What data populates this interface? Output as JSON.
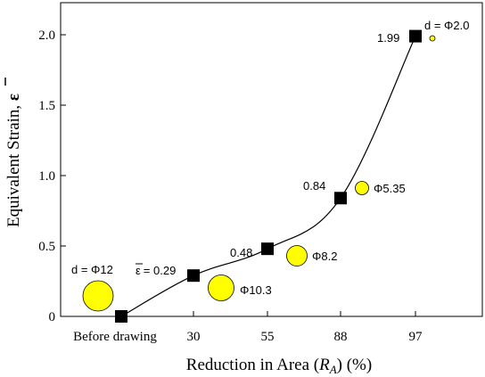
{
  "chart_data": {
    "type": "line",
    "xlabel": "Reduction in Area (",
    "xlabel_var": "R",
    "xlabel_sub": "A",
    "xlabel_tail": ") (%)",
    "ylabel": "Equivalent Strain, ",
    "ylabel_symbol": "ε",
    "x_categories": [
      "Before drawing",
      "30",
      "55",
      "88",
      "97"
    ],
    "y_ticks": [
      "0",
      "0.5",
      "1.0",
      "1.5",
      "2.0"
    ],
    "ylim": [
      0,
      2.2
    ],
    "grid": false,
    "points": [
      {
        "category": "Before drawing",
        "strain": 0.0
      },
      {
        "category": "30",
        "strain": 0.29
      },
      {
        "category": "55",
        "strain": 0.48
      },
      {
        "category": "88",
        "strain": 0.84
      },
      {
        "category": "97",
        "strain": 1.99
      }
    ],
    "value_labels": [
      {
        "text": "d = Φ12",
        "category": "Before drawing"
      },
      {
        "text": "= 0.29",
        "symbol": "ε",
        "category": "30"
      },
      {
        "text": "0.48",
        "category": "55"
      },
      {
        "text": "0.84",
        "category": "88"
      },
      {
        "text": "1.99",
        "category": "97"
      }
    ],
    "diameter_labels": [
      "Φ10.3",
      "Φ8.2",
      "Φ5.35",
      "d = Φ2.0"
    ],
    "colors": {
      "marker": "#000000",
      "circle_fill": "#ffff00",
      "line": "#000000"
    }
  }
}
